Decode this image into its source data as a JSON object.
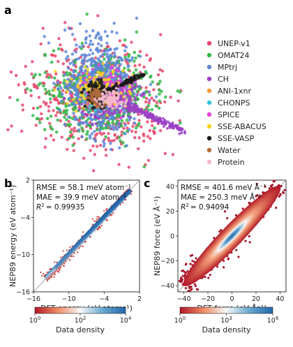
{
  "panels": {
    "a": "a",
    "b": "b",
    "c": "c"
  },
  "chart_data": [
    {
      "type": "scatter",
      "panel": "a",
      "title": "",
      "xlabel": "",
      "ylabel": "",
      "grid": false,
      "axes_visible": false,
      "legend_placement": "right",
      "series": [
        {
          "name": "UNEP-v1",
          "color": "#e8456b"
        },
        {
          "name": "OMAT24",
          "color": "#33b84a"
        },
        {
          "name": "MPtrj",
          "color": "#5b86d8"
        },
        {
          "name": "CH",
          "color": "#9b3fc4"
        },
        {
          "name": "ANI-1xnr",
          "color": "#f29a3a"
        },
        {
          "name": "CHONPS",
          "color": "#36c3d9"
        },
        {
          "name": "SPICE",
          "color": "#ea3fd6"
        },
        {
          "name": "SSE-ABACUS",
          "color": "#f5d320"
        },
        {
          "name": "SSE-VASP",
          "color": "#1a1a1a"
        },
        {
          "name": "Water",
          "color": "#b36b3c"
        },
        {
          "name": "Protein",
          "color": "#f6b8cf"
        }
      ]
    },
    {
      "type": "scatter",
      "panel": "b",
      "title": "",
      "xlabel": "DFT energy (eV atom⁻¹)",
      "ylabel": "NEP89 energy (eV atom⁻¹)",
      "xlim": [
        -16,
        2
      ],
      "ylim": [
        -16,
        2
      ],
      "xticks": [
        -16,
        -10,
        -4,
        2
      ],
      "yticks": [
        -16,
        -10,
        -4,
        2
      ],
      "xtick_labels": [
        "−16",
        "−10",
        "−4",
        "2"
      ],
      "ytick_labels": [
        "−16",
        "−10",
        "−4",
        "2"
      ],
      "annotations": [
        "RMSE = 58.1 meV atom⁻¹",
        "MAE = 39.9 meV atom⁻¹",
        "= 0.99935"
      ],
      "r2_label": "R",
      "r2_sup": "2",
      "diagonal": {
        "x": [
          -16,
          2
        ],
        "y": [
          -16,
          2
        ]
      },
      "density_band": {
        "x": [
          -14,
          0.5
        ],
        "y": [
          -14,
          0.5
        ],
        "width_data_units": 0.45
      },
      "colorbar": {
        "label": "Data density",
        "scale": "log",
        "range": [
          1,
          10000
        ],
        "tick_labels": [
          "10",
          "10",
          "10"
        ],
        "tick_exponents": [
          "0",
          "2",
          "4"
        ],
        "tick_values": [
          1,
          100,
          10000
        ],
        "colors": [
          "#b2182b",
          "#ef8a62",
          "#f7f7f7",
          "#67a9cf",
          "#2166ac"
        ]
      }
    },
    {
      "type": "scatter",
      "panel": "c",
      "title": "",
      "xlabel": "DFT force (eV Å⁻¹)",
      "ylabel": "NEP89 force (eV Å⁻¹)",
      "xlim": [
        -45,
        45
      ],
      "ylim": [
        -45,
        45
      ],
      "xticks": [
        -40,
        -20,
        0,
        20,
        40
      ],
      "yticks": [
        -40,
        -20,
        0,
        20,
        40
      ],
      "xtick_labels": [
        "−40",
        "−20",
        "0",
        "20",
        "40"
      ],
      "ytick_labels": [
        "−40",
        "−20",
        "0",
        "20",
        "40"
      ],
      "annotations": [
        "RMSE = 401.6 meV Å⁻¹",
        "MAE = 250.3 meV Å⁻¹",
        "= 0.94094"
      ],
      "r2_label": "R",
      "r2_sup": "2",
      "diagonal": {
        "x": [
          -45,
          45
        ],
        "y": [
          -45,
          45
        ]
      },
      "density_band": {
        "x": [
          -40,
          40
        ],
        "y": [
          -40,
          40
        ],
        "width_data_units": 5
      },
      "colorbar": {
        "label": "Data density",
        "scale": "log",
        "range": [
          1,
          1000000
        ],
        "tick_labels": [
          "10",
          "10",
          "10"
        ],
        "tick_exponents": [
          "0",
          "3",
          "6"
        ],
        "tick_values": [
          1,
          1000,
          1000000
        ],
        "colors": [
          "#b2182b",
          "#ef8a62",
          "#f7f7f7",
          "#67a9cf",
          "#2166ac"
        ]
      }
    }
  ]
}
